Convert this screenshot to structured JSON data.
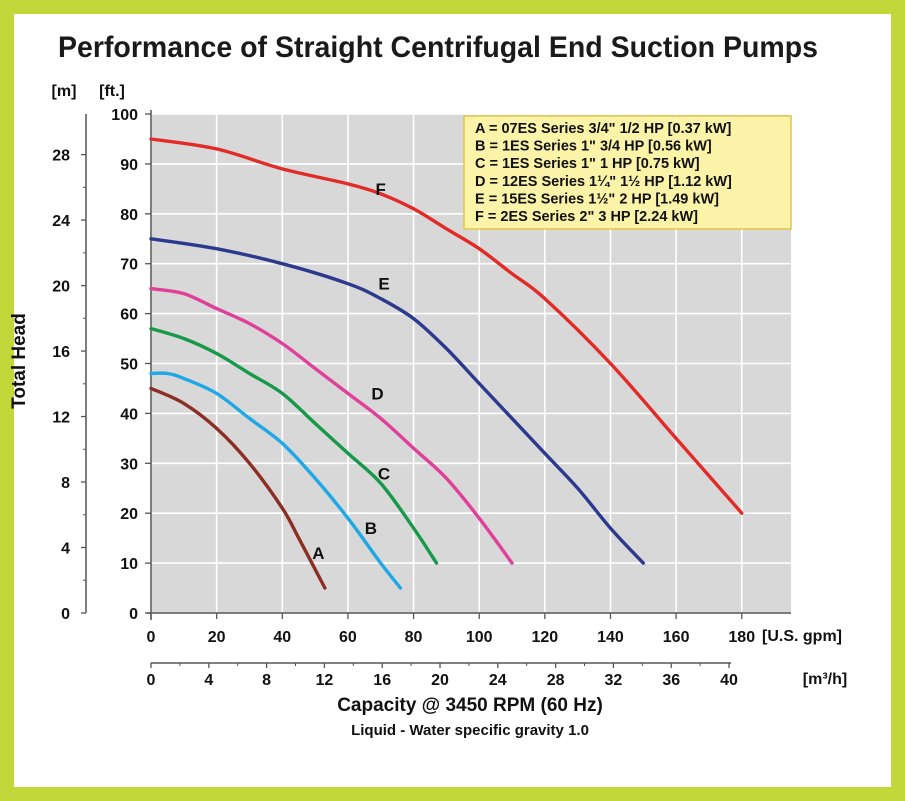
{
  "colors": {
    "frame": "#c1d73a",
    "plot_background": "#d8d8d8",
    "grid": "#ffffff",
    "legend_background": "#faf3a8",
    "legend_border": "#e0c64a"
  },
  "chart_data": {
    "type": "line",
    "title": "Performance of Straight Centrifugal End Suction Pumps",
    "xlabel": "Capacity @ 3450 RPM (60 Hz)",
    "subtitle": "Liquid - Water specific gravity 1.0",
    "ylabel": "Total Head",
    "x_unit": "[U.S. gpm]",
    "x2_unit": "[m³/h]",
    "y_unit": "[ft.]",
    "y2_unit": "[m]",
    "xlim": [
      0,
      195
    ],
    "ylim": [
      0,
      100
    ],
    "x_ticks": [
      0,
      20,
      40,
      60,
      80,
      100,
      120,
      140,
      160,
      180
    ],
    "y_ticks": [
      0,
      10,
      20,
      30,
      40,
      50,
      60,
      70,
      80,
      90,
      100
    ],
    "x2_ticks": [
      0,
      4,
      8,
      12,
      16,
      20,
      24,
      28,
      32,
      36,
      40
    ],
    "y2_ticks": [
      0,
      4,
      8,
      12,
      16,
      20,
      24,
      28
    ],
    "grid": true,
    "legend_position": "top-right",
    "legend": [
      "A = 07ES Series 3/4\" 1/2 HP [0.37 kW]",
      "B = 1ES Series 1\" 3/4 HP [0.56 kW]",
      "C = 1ES Series 1\" 1 HP [0.75 kW]",
      "D = 12ES Series 1¼\" 1½ HP [1.12 kW]",
      "E = 15ES Series 1½\" 2 HP [1.49 kW]",
      "F = 2ES Series 2\" 3 HP [2.24 kW]"
    ],
    "series": [
      {
        "name": "A",
        "color": "#8b2e24",
        "label_at": [
          51,
          12
        ],
        "x": [
          0,
          10,
          20,
          30,
          40,
          45,
          53
        ],
        "y": [
          45,
          42,
          37,
          30,
          21,
          15,
          5
        ]
      },
      {
        "name": "B",
        "color": "#1ea9e6",
        "label_at": [
          67,
          17
        ],
        "x": [
          0,
          5,
          10,
          20,
          30,
          40,
          50,
          60,
          70,
          76
        ],
        "y": [
          48,
          48,
          47,
          44,
          39,
          34,
          27,
          19,
          10,
          5
        ]
      },
      {
        "name": "C",
        "color": "#17994a",
        "label_at": [
          71,
          28
        ],
        "x": [
          0,
          10,
          20,
          30,
          40,
          50,
          60,
          70,
          80,
          87
        ],
        "y": [
          57,
          55,
          52,
          48,
          44,
          38,
          32,
          26,
          17,
          10
        ]
      },
      {
        "name": "D",
        "color": "#e0409a",
        "label_at": [
          69,
          44
        ],
        "x": [
          0,
          10,
          20,
          30,
          40,
          50,
          60,
          70,
          80,
          90,
          100,
          110
        ],
        "y": [
          65,
          64,
          61,
          58,
          54,
          49,
          44,
          39,
          33,
          27,
          19,
          10
        ]
      },
      {
        "name": "E",
        "color": "#2b3a8f",
        "label_at": [
          71,
          66
        ],
        "x": [
          0,
          20,
          40,
          60,
          70,
          80,
          90,
          100,
          110,
          120,
          130,
          140,
          150
        ],
        "y": [
          75,
          73,
          70,
          66,
          63,
          59,
          53,
          46,
          39,
          32,
          25,
          17,
          10
        ]
      },
      {
        "name": "F",
        "color": "#e22a27",
        "label_at": [
          70,
          85
        ],
        "x": [
          0,
          20,
          40,
          60,
          70,
          80,
          90,
          100,
          110,
          120,
          140,
          160,
          180
        ],
        "y": [
          95,
          93,
          89,
          86,
          84,
          81,
          77,
          73,
          68,
          63,
          50,
          35,
          20
        ]
      }
    ]
  }
}
